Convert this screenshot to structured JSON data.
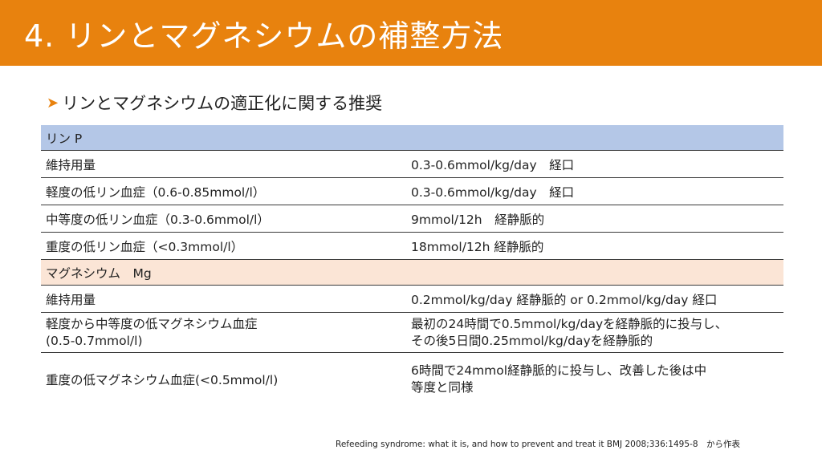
{
  "title": "4. リンとマグネシウムの補整方法",
  "subheading": "リンとマグネシウムの適正化に関する推奨",
  "phosphorus": {
    "header": "リン P",
    "rows": [
      {
        "label": "維持用量",
        "value": "0.3-0.6mmol/kg/day　経口"
      },
      {
        "label": "軽度の低リン血症（0.6-0.85mmol/l）",
        "value": "0.3-0.6mmol/kg/day　経口"
      },
      {
        "label": "中等度の低リン血症（0.3-0.6mmol/l）",
        "value": "9mmol/12h　経静脈的"
      },
      {
        "label": "重度の低リン血症（<0.3mmol/l）",
        "value": "18mmol/12h  経静脈的"
      }
    ]
  },
  "magnesium": {
    "header": "マグネシウム　Mg",
    "rows": [
      {
        "label": "維持用量",
        "value": "0.2mmol/kg/day  経静脈的 or  0.2mmol/kg/day  経口"
      },
      {
        "label_line1": "軽度から中等度の低マグネシウム血症",
        "label_line2": "(0.5-0.7mmol/l)",
        "value_line1": "最初の24時間で0.5mmol/kg/dayを経静脈的に投与し、",
        "value_line2": "その後5日間0.25mmol/kg/dayを経静脈的"
      },
      {
        "label": "重度の低マグネシウム血症(<0.5mmol/l)",
        "value_line1": "6時間で24mmol経静脈的に投与し、改善した後は中",
        "value_line2": "等度と同様"
      }
    ]
  },
  "citation": "Refeeding syndrome: what it is, and how to prevent and treat it  BMJ 2008;336:1495-8　から作表"
}
